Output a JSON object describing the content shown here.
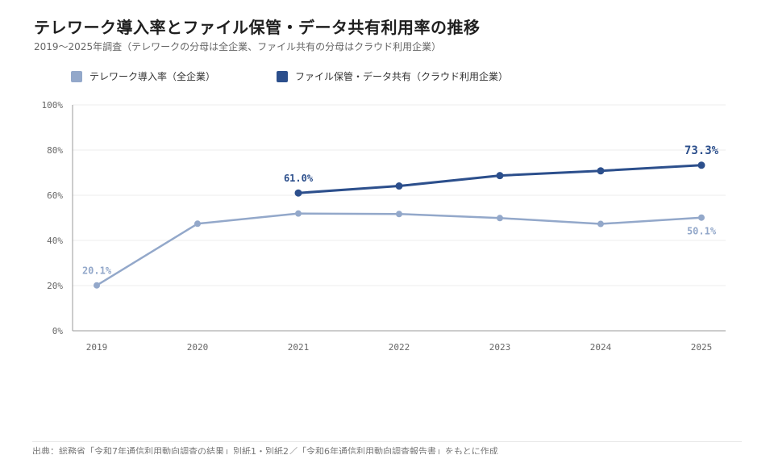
{
  "header": {
    "title": "テレワーク導入率とファイル保管・データ共有利用率の推移",
    "subtitle": "2019〜2025年調査（テレワークの分母は全企業、ファイル共有の分母はクラウド利用企業）"
  },
  "legend": {
    "items": [
      {
        "label": "テレワーク導入率（全企業）",
        "color": "#93a8ca"
      },
      {
        "label": "ファイル保管・データ共有（クラウド利用企業）",
        "color": "#2c4f8c"
      }
    ]
  },
  "source": "出典：総務省「令和7年通信利用動向調査の結果」別紙1・別紙2／「令和6年通信利用動向調査報告書」をもとに作成",
  "chart_data": {
    "type": "line",
    "categories": [
      "2019",
      "2020",
      "2021",
      "2022",
      "2023",
      "2024",
      "2025"
    ],
    "yticks": [
      "0%",
      "20%",
      "40%",
      "60%",
      "80%",
      "100%"
    ],
    "ylim": [
      0,
      100
    ],
    "grid": true,
    "legend_position": "top-left",
    "series": [
      {
        "name": "テレワーク導入率（全企業）",
        "color": "#93a8ca",
        "values": [
          20.1,
          47.4,
          51.9,
          51.7,
          49.9,
          47.3,
          50.1
        ],
        "labels": [
          {
            "index": 0,
            "text": "20.1%",
            "pos": "above"
          },
          {
            "index": 6,
            "text": "50.1%",
            "pos": "below"
          }
        ]
      },
      {
        "name": "ファイル保管・データ共有（クラウド利用企業）",
        "color": "#2c4f8c",
        "values": [
          null,
          null,
          61.0,
          64.1,
          68.7,
          70.8,
          73.3
        ],
        "labels": [
          {
            "index": 2,
            "text": "61.0%",
            "pos": "above"
          },
          {
            "index": 6,
            "text": "73.3%",
            "pos": "above"
          }
        ]
      }
    ]
  }
}
